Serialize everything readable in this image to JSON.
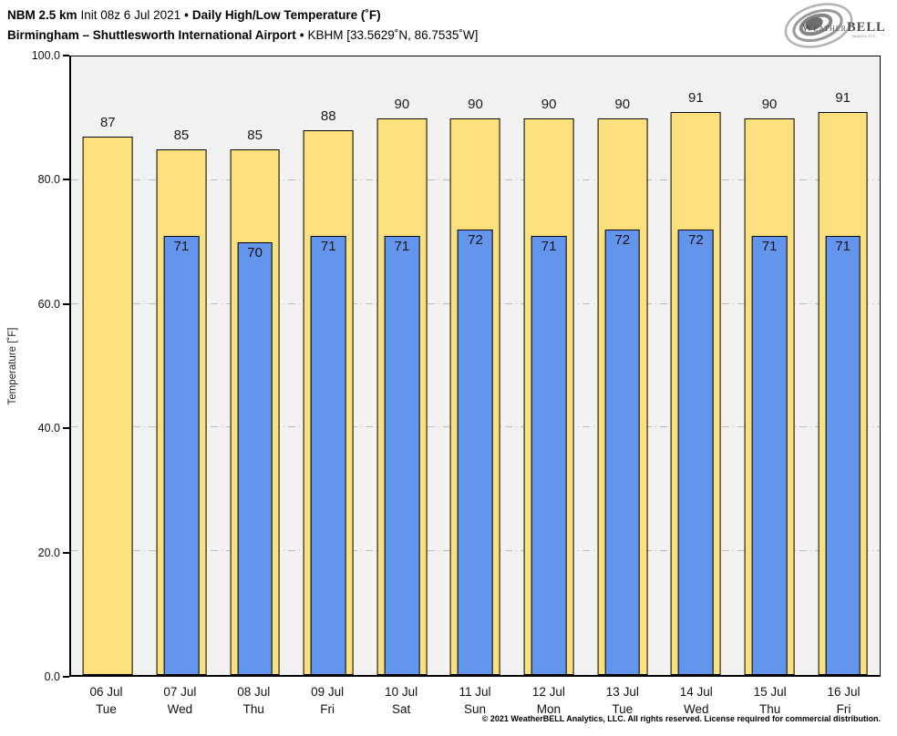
{
  "header": {
    "model": "NBM 2.5 km",
    "init": "Init 08z 6 Jul 2021",
    "bullet": "•",
    "product": "Daily High/Low Temperature (˚F)",
    "station": "Birmingham – Shuttlesworth International Airport",
    "station_meta": "KBHM [33.5629˚N, 86.7535˚W]"
  },
  "logo": {
    "brand_weather": "Weather",
    "brand_bell": "BELL",
    "sub": "Analytics LLC"
  },
  "chart_data": {
    "type": "bar",
    "title": "Daily High/Low Temperature (˚F)",
    "ylabel": "Temperature [˚F]",
    "ylim": [
      0,
      100
    ],
    "yticks": [
      0,
      20,
      40,
      60,
      80,
      100
    ],
    "ytick_labels": [
      "0.0",
      "20.0",
      "40.0",
      "60.0",
      "80.0",
      "100.0"
    ],
    "grid": "horizontal dash-dot",
    "legend_position": "none",
    "categories": [
      {
        "date": "06 Jul",
        "day": "Tue"
      },
      {
        "date": "07 Jul",
        "day": "Wed"
      },
      {
        "date": "08 Jul",
        "day": "Thu"
      },
      {
        "date": "09 Jul",
        "day": "Fri"
      },
      {
        "date": "10 Jul",
        "day": "Sat"
      },
      {
        "date": "11 Jul",
        "day": "Sun"
      },
      {
        "date": "12 Jul",
        "day": "Mon"
      },
      {
        "date": "13 Jul",
        "day": "Tue"
      },
      {
        "date": "14 Jul",
        "day": "Wed"
      },
      {
        "date": "15 Jul",
        "day": "Thu"
      },
      {
        "date": "16 Jul",
        "day": "Fri"
      }
    ],
    "series": [
      {
        "name": "High",
        "color": "#fce07d",
        "values": [
          87,
          85,
          85,
          88,
          90,
          90,
          90,
          90,
          91,
          90,
          91
        ]
      },
      {
        "name": "Low",
        "color": "#6495ed",
        "values": [
          null,
          71,
          70,
          71,
          71,
          72,
          71,
          72,
          72,
          71,
          71
        ]
      }
    ]
  },
  "colors": {
    "high_bar": "#fce07d",
    "low_bar": "#6495ed",
    "bar_border": "#000000",
    "plot_background": "#f2f2f2",
    "gridline": "#bdbdbd"
  },
  "footer": {
    "copyright": "© 2021 WeatherBELL Analytics, LLC. All rights reserved. License required for commercial distribution."
  }
}
